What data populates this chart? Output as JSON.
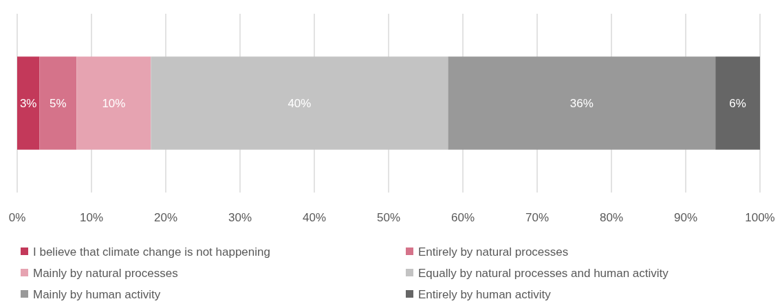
{
  "chart_data": {
    "type": "bar",
    "orientation": "horizontal",
    "stacked": true,
    "categories": [
      null
    ],
    "series": [
      {
        "name": "I believe that climate change is not happening",
        "color": "#c3395a",
        "values": [
          3
        ],
        "value_labels": [
          "3%"
        ]
      },
      {
        "name": "Entirely by natural processes",
        "color": "#d5738a",
        "values": [
          5
        ],
        "value_labels": [
          "5%"
        ]
      },
      {
        "name": "Mainly by natural processes",
        "color": "#e6a3b1",
        "values": [
          10
        ],
        "value_labels": [
          "10%"
        ]
      },
      {
        "name": "Equally by natural processes and human activity",
        "color": "#c3c3c3",
        "values": [
          40
        ],
        "value_labels": [
          "40%"
        ]
      },
      {
        "name": "Mainly by human activity",
        "color": "#999999",
        "values": [
          36
        ],
        "value_labels": [
          "36%"
        ]
      },
      {
        "name": "Entirely by human activity",
        "color": "#666666",
        "values": [
          6
        ],
        "value_labels": [
          "6%"
        ]
      }
    ],
    "xlim": [
      0,
      100
    ],
    "xticks": [
      {
        "value": 0,
        "label": "0%"
      },
      {
        "value": 10,
        "label": "10%"
      },
      {
        "value": 20,
        "label": "20%"
      },
      {
        "value": 30,
        "label": "30%"
      },
      {
        "value": 40,
        "label": "40%"
      },
      {
        "value": 50,
        "label": "50%"
      },
      {
        "value": 60,
        "label": "60%"
      },
      {
        "value": 70,
        "label": "70%"
      },
      {
        "value": 80,
        "label": "80%"
      },
      {
        "value": 90,
        "label": "90%"
      },
      {
        "value": 100,
        "label": "100%"
      }
    ],
    "grid": "x",
    "legend": "bottom"
  }
}
